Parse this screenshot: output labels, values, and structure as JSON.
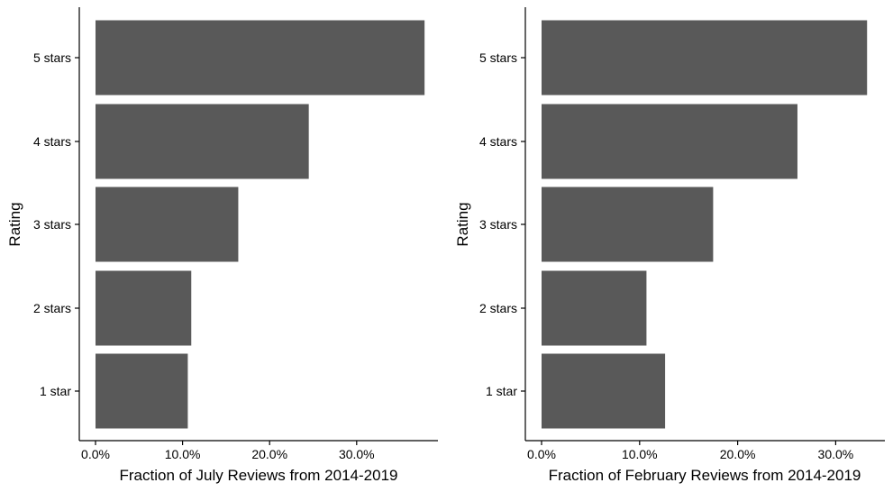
{
  "chart_data": [
    {
      "type": "bar",
      "orientation": "horizontal",
      "title": "",
      "categories": [
        "1 star",
        "2 stars",
        "3 stars",
        "4 stars",
        "5 stars"
      ],
      "values": [
        0.106,
        0.11,
        0.164,
        0.245,
        0.378
      ],
      "xlabel": "Fraction of July Reviews from 2014-2019",
      "ylabel": "Rating",
      "xlim": [
        0,
        0.4
      ],
      "xticks": [
        0,
        0.1,
        0.2,
        0.3
      ],
      "xtick_labels": [
        "0.0%",
        "10.0%",
        "20.0%",
        "30.0%"
      ],
      "bar_color": "#595959",
      "grid": false
    },
    {
      "type": "bar",
      "orientation": "horizontal",
      "title": "",
      "categories": [
        "1 star",
        "2 stars",
        "3 stars",
        "4 stars",
        "5 stars"
      ],
      "values": [
        0.126,
        0.107,
        0.175,
        0.261,
        0.332
      ],
      "xlabel": "Fraction of February Reviews from 2014-2019",
      "ylabel": "Rating",
      "xlim": [
        0,
        0.35
      ],
      "xticks": [
        0,
        0.1,
        0.2,
        0.3
      ],
      "xtick_labels": [
        "0.0%",
        "10.0%",
        "20.0%",
        "30.0%"
      ],
      "bar_color": "#595959",
      "grid": false
    }
  ]
}
